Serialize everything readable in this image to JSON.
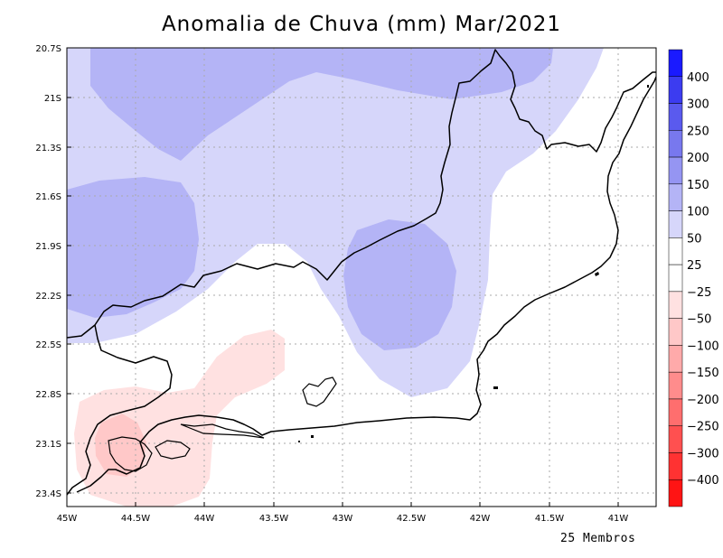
{
  "title": "Anomalia de Chuva (mm) Mar/2021",
  "footer": "25 Membros",
  "y_ticks": [
    "20.7S",
    "21S",
    "21.3S",
    "21.6S",
    "21.9S",
    "22.2S",
    "22.5S",
    "22.8S",
    "23.1S",
    "23.4S"
  ],
  "x_ticks": [
    "45W",
    "44.5W",
    "44W",
    "43.5W",
    "43W",
    "42.5W",
    "42W",
    "41.5W",
    "41W"
  ],
  "colorbar": {
    "labels": [
      "400",
      "300",
      "250",
      "200",
      "150",
      "100",
      "50",
      "25",
      "−25",
      "−50",
      "−100",
      "−150",
      "−200",
      "−250",
      "−300",
      "−400"
    ],
    "colors": [
      "#1a1aff",
      "#3c3cf0",
      "#5a5aee",
      "#7878ee",
      "#9595f2",
      "#b4b4f6",
      "#d6d6fa",
      "#ffffff",
      "#ffffff",
      "#ffe1e1",
      "#ffc8c8",
      "#ffaaaa",
      "#ff8c8c",
      "#ff6e6e",
      "#ff5050",
      "#ff3232",
      "#ff1414"
    ]
  },
  "colors": {
    "positive_light": "#d6d6fa",
    "positive_medium": "#b4b4f6",
    "negative_light": "#ffe1e1",
    "negative_medium": "#ffc8c8",
    "coastline": "#000000",
    "grid": "#aaaaaa"
  }
}
